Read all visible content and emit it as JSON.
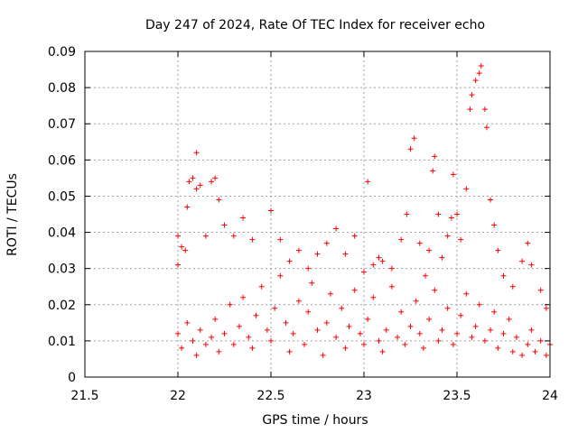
{
  "chart_data": {
    "type": "scatter",
    "title": "Day 247 of 2024, Rate Of TEC Index for receiver echo",
    "xlabel": "GPS time / hours",
    "ylabel": "ROTI / TECUs",
    "xlim": [
      21.5,
      24
    ],
    "ylim": [
      0,
      0.09
    ],
    "xticks": [
      "21.5",
      "22",
      "22.5",
      "23",
      "23.5",
      "24"
    ],
    "yticks": [
      "0",
      "0.01",
      "0.02",
      "0.03",
      "0.04",
      "0.05",
      "0.06",
      "0.07",
      "0.08",
      "0.09"
    ],
    "grid": true,
    "marker": "+",
    "color": "#ff0000",
    "series": [
      {
        "points": [
          [
            22.0,
            0.039
          ],
          [
            22.0,
            0.031
          ],
          [
            22.02,
            0.036
          ],
          [
            22.04,
            0.035
          ],
          [
            22.05,
            0.047
          ],
          [
            22.06,
            0.054
          ],
          [
            22.08,
            0.055
          ],
          [
            22.1,
            0.052
          ],
          [
            22.1,
            0.062
          ],
          [
            22.12,
            0.053
          ],
          [
            22.15,
            0.039
          ],
          [
            22.18,
            0.054
          ],
          [
            22.2,
            0.055
          ],
          [
            22.22,
            0.049
          ],
          [
            22.25,
            0.042
          ],
          [
            22.3,
            0.039
          ],
          [
            22.35,
            0.044
          ],
          [
            22.4,
            0.038
          ],
          [
            22.5,
            0.046
          ],
          [
            22.55,
            0.038
          ],
          [
            22.6,
            0.032
          ],
          [
            22.65,
            0.035
          ],
          [
            22.7,
            0.03
          ],
          [
            22.75,
            0.034
          ],
          [
            22.8,
            0.037
          ],
          [
            22.85,
            0.041
          ],
          [
            22.9,
            0.034
          ],
          [
            22.95,
            0.039
          ],
          [
            23.0,
            0.029
          ],
          [
            23.02,
            0.054
          ],
          [
            23.05,
            0.031
          ],
          [
            23.08,
            0.033
          ],
          [
            23.1,
            0.032
          ],
          [
            23.15,
            0.03
          ],
          [
            23.2,
            0.038
          ],
          [
            23.23,
            0.045
          ],
          [
            23.25,
            0.063
          ],
          [
            23.27,
            0.066
          ],
          [
            23.3,
            0.037
          ],
          [
            23.33,
            0.028
          ],
          [
            23.35,
            0.035
          ],
          [
            23.37,
            0.057
          ],
          [
            23.38,
            0.061
          ],
          [
            23.4,
            0.045
          ],
          [
            23.42,
            0.033
          ],
          [
            23.45,
            0.039
          ],
          [
            23.47,
            0.044
          ],
          [
            23.48,
            0.056
          ],
          [
            23.5,
            0.045
          ],
          [
            23.52,
            0.038
          ],
          [
            23.55,
            0.052
          ],
          [
            23.57,
            0.074
          ],
          [
            23.58,
            0.078
          ],
          [
            23.6,
            0.082
          ],
          [
            23.62,
            0.084
          ],
          [
            23.63,
            0.086
          ],
          [
            23.65,
            0.074
          ],
          [
            23.66,
            0.069
          ],
          [
            23.68,
            0.049
          ],
          [
            23.7,
            0.042
          ],
          [
            23.72,
            0.035
          ],
          [
            23.75,
            0.028
          ],
          [
            23.8,
            0.025
          ],
          [
            23.85,
            0.032
          ],
          [
            23.88,
            0.037
          ],
          [
            23.9,
            0.031
          ],
          [
            23.95,
            0.024
          ],
          [
            23.98,
            0.019
          ],
          [
            22.0,
            0.012
          ],
          [
            22.02,
            0.008
          ],
          [
            22.05,
            0.015
          ],
          [
            22.08,
            0.01
          ],
          [
            22.1,
            0.006
          ],
          [
            22.12,
            0.013
          ],
          [
            22.15,
            0.009
          ],
          [
            22.18,
            0.011
          ],
          [
            22.2,
            0.016
          ],
          [
            22.22,
            0.007
          ],
          [
            22.25,
            0.012
          ],
          [
            22.28,
            0.02
          ],
          [
            22.3,
            0.009
          ],
          [
            22.33,
            0.014
          ],
          [
            22.35,
            0.022
          ],
          [
            22.38,
            0.011
          ],
          [
            22.4,
            0.008
          ],
          [
            22.42,
            0.017
          ],
          [
            22.45,
            0.025
          ],
          [
            22.48,
            0.013
          ],
          [
            22.5,
            0.01
          ],
          [
            22.52,
            0.019
          ],
          [
            22.55,
            0.028
          ],
          [
            22.58,
            0.015
          ],
          [
            22.6,
            0.007
          ],
          [
            22.62,
            0.012
          ],
          [
            22.65,
            0.021
          ],
          [
            22.68,
            0.009
          ],
          [
            22.7,
            0.018
          ],
          [
            22.72,
            0.026
          ],
          [
            22.75,
            0.013
          ],
          [
            22.78,
            0.006
          ],
          [
            22.8,
            0.015
          ],
          [
            22.82,
            0.023
          ],
          [
            22.85,
            0.011
          ],
          [
            22.88,
            0.019
          ],
          [
            22.9,
            0.008
          ],
          [
            22.92,
            0.014
          ],
          [
            22.95,
            0.024
          ],
          [
            22.98,
            0.012
          ],
          [
            23.0,
            0.009
          ],
          [
            23.02,
            0.016
          ],
          [
            23.05,
            0.022
          ],
          [
            23.08,
            0.01
          ],
          [
            23.1,
            0.007
          ],
          [
            23.12,
            0.013
          ],
          [
            23.15,
            0.025
          ],
          [
            23.18,
            0.011
          ],
          [
            23.2,
            0.018
          ],
          [
            23.22,
            0.009
          ],
          [
            23.25,
            0.014
          ],
          [
            23.28,
            0.021
          ],
          [
            23.3,
            0.012
          ],
          [
            23.32,
            0.008
          ],
          [
            23.35,
            0.016
          ],
          [
            23.38,
            0.024
          ],
          [
            23.4,
            0.01
          ],
          [
            23.42,
            0.013
          ],
          [
            23.45,
            0.019
          ],
          [
            23.48,
            0.009
          ],
          [
            23.5,
            0.012
          ],
          [
            23.52,
            0.017
          ],
          [
            23.55,
            0.023
          ],
          [
            23.58,
            0.011
          ],
          [
            23.6,
            0.014
          ],
          [
            23.62,
            0.02
          ],
          [
            23.65,
            0.01
          ],
          [
            23.68,
            0.013
          ],
          [
            23.7,
            0.018
          ],
          [
            23.72,
            0.008
          ],
          [
            23.75,
            0.012
          ],
          [
            23.78,
            0.016
          ],
          [
            23.8,
            0.007
          ],
          [
            23.82,
            0.011
          ],
          [
            23.85,
            0.006
          ],
          [
            23.88,
            0.009
          ],
          [
            23.9,
            0.013
          ],
          [
            23.92,
            0.007
          ],
          [
            23.95,
            0.01
          ],
          [
            23.98,
            0.006
          ],
          [
            24.0,
            0.009
          ]
        ]
      }
    ]
  }
}
